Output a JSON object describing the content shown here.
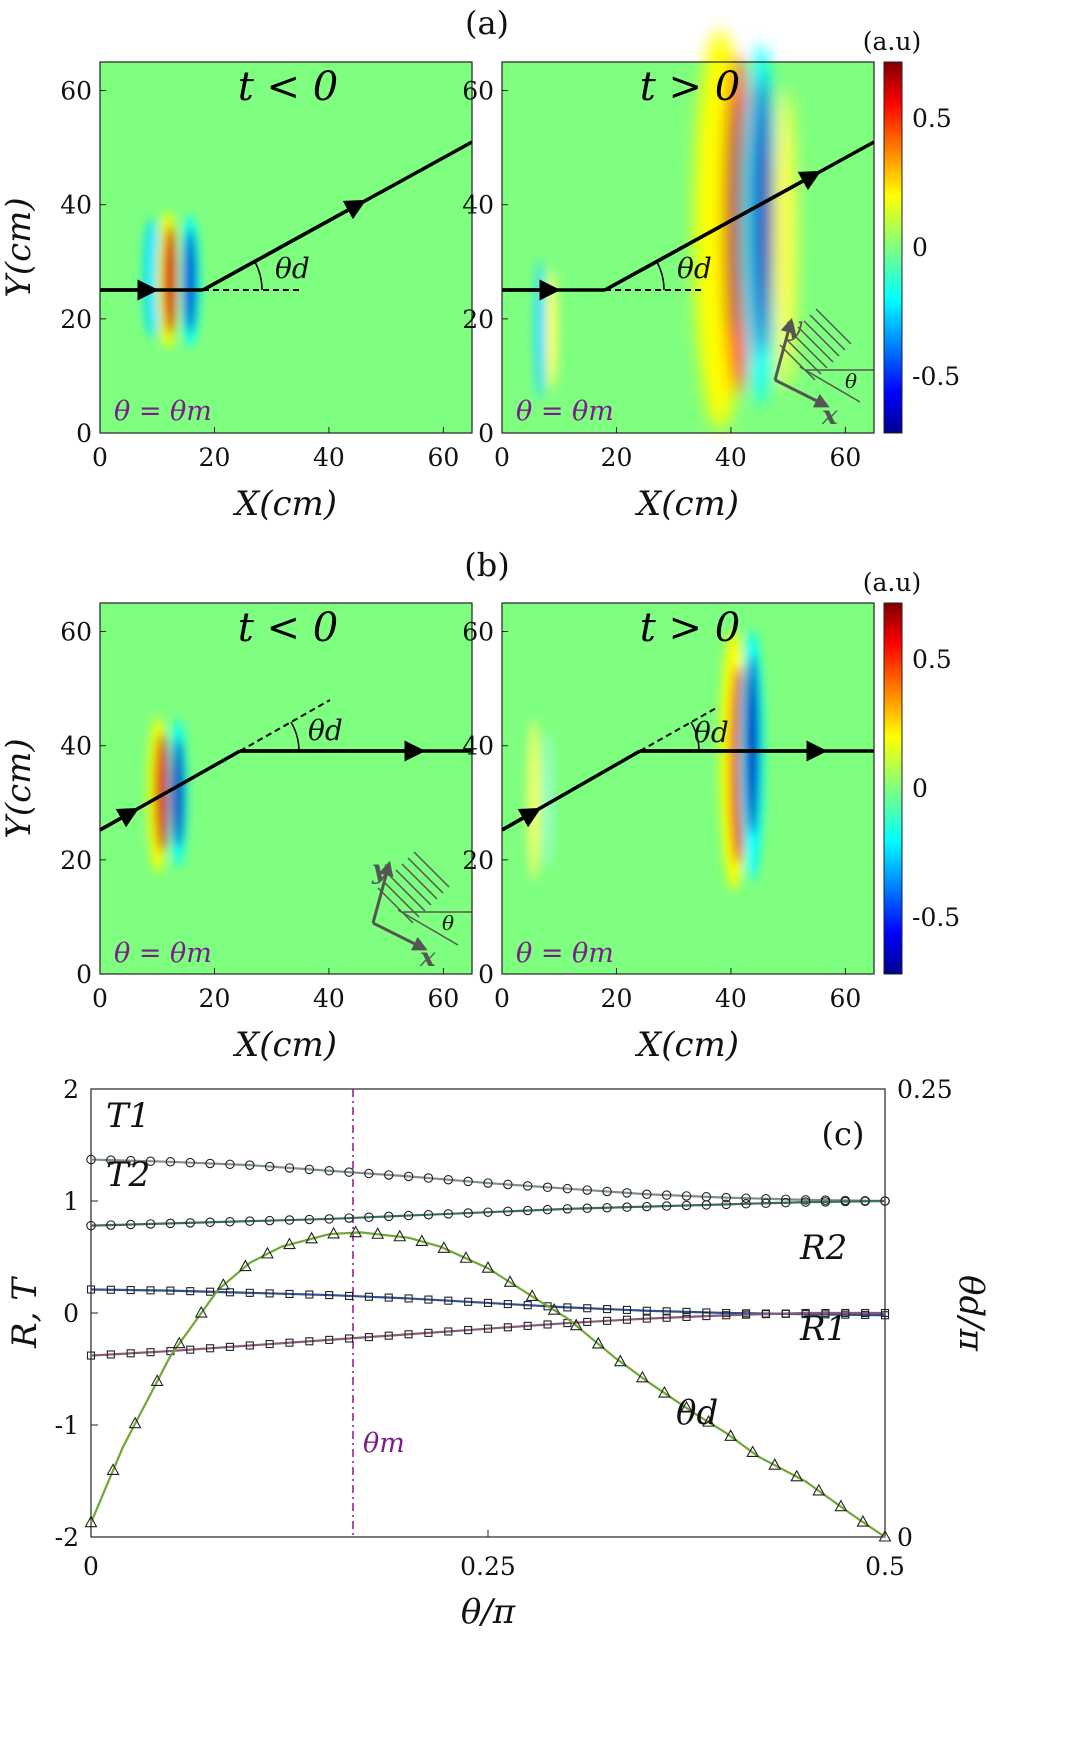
{
  "panels": {
    "a": {
      "label": "(a)",
      "left": {
        "title": "t < 0",
        "annotation": "θ = θm",
        "angle_label": "θd"
      },
      "right": {
        "title": "t > 0",
        "annotation": "θ = θm",
        "angle_label": "θd",
        "inset": {
          "y": "y",
          "x": "x",
          "angle": "θ"
        }
      }
    },
    "b": {
      "label": "(b)",
      "left": {
        "title": "t < 0",
        "annotation": "θ = θm",
        "angle_label": "θd",
        "inset": {
          "y": "y",
          "x": "x",
          "angle": "θ"
        }
      },
      "right": {
        "title": "t > 0",
        "annotation": "θ = θm",
        "angle_label": "θd"
      }
    }
  },
  "field_axes": {
    "xlabel": "X(cm)",
    "ylabel": "Y(cm)",
    "xticks": [
      "0",
      "20",
      "40",
      "60"
    ],
    "yticks": [
      "0",
      "20",
      "40",
      "60"
    ],
    "xlim": [
      0,
      65
    ],
    "ylim": [
      0,
      65
    ]
  },
  "colorbar": {
    "unit": "(a.u)",
    "ticks": [
      "0.5",
      "0",
      "-0.5"
    ],
    "range": [
      -0.7,
      0.7
    ],
    "colormap": "jet"
  },
  "chart_data": {
    "type": "line",
    "panel_label": "(c)",
    "xlabel": "θ/π",
    "ylabel_left": "R, T",
    "ylabel_right": "θd/π",
    "xticks": [
      "0",
      "0.25",
      "0.5"
    ],
    "xlim": [
      0,
      0.5
    ],
    "yticks_left": [
      "-2",
      "-1",
      "0",
      "1",
      "2"
    ],
    "ylim_left": [
      -2,
      2
    ],
    "yticks_right": [
      "0",
      "0.25"
    ],
    "ylim_right": [
      0,
      0.25
    ],
    "vline": {
      "x": 0.165,
      "label": "θm",
      "color": "#9b1f9b"
    },
    "series": [
      {
        "name": "T1",
        "axis": "left",
        "marker": "circle",
        "line_color": "#7f8f8f",
        "x": [
          0,
          0.05,
          0.1,
          0.15,
          0.2,
          0.25,
          0.3,
          0.35,
          0.4,
          0.45,
          0.5
        ],
        "y": [
          1.37,
          1.35,
          1.32,
          1.27,
          1.22,
          1.16,
          1.11,
          1.06,
          1.03,
          1.01,
          1.0
        ]
      },
      {
        "name": "T2",
        "axis": "left",
        "marker": "circle",
        "line_color": "#3a6e5a",
        "x": [
          0,
          0.05,
          0.1,
          0.15,
          0.2,
          0.25,
          0.3,
          0.35,
          0.4,
          0.45,
          0.5
        ],
        "y": [
          0.78,
          0.8,
          0.82,
          0.84,
          0.87,
          0.9,
          0.93,
          0.95,
          0.97,
          0.99,
          1.0
        ]
      },
      {
        "name": "R2",
        "axis": "left",
        "marker": "square",
        "line_color": "#2f4f8f",
        "x": [
          0,
          0.05,
          0.1,
          0.15,
          0.2,
          0.25,
          0.3,
          0.35,
          0.4,
          0.45,
          0.5
        ],
        "y": [
          0.21,
          0.2,
          0.18,
          0.16,
          0.13,
          0.09,
          0.05,
          0.02,
          0.0,
          -0.01,
          -0.02
        ]
      },
      {
        "name": "R1",
        "axis": "left",
        "marker": "square",
        "line_color": "#8a5a7a",
        "x": [
          0,
          0.05,
          0.1,
          0.15,
          0.2,
          0.25,
          0.3,
          0.35,
          0.4,
          0.45,
          0.5
        ],
        "y": [
          -0.38,
          -0.34,
          -0.29,
          -0.24,
          -0.19,
          -0.14,
          -0.09,
          -0.05,
          -0.02,
          0.0,
          0.0
        ]
      },
      {
        "name": "θd",
        "axis": "right",
        "marker": "triangle",
        "line_color": "#6fa832",
        "x": [
          0,
          0.02,
          0.05,
          0.08,
          0.1,
          0.12,
          0.15,
          0.17,
          0.2,
          0.22,
          0.25,
          0.28,
          0.3,
          0.33,
          0.35,
          0.38,
          0.4,
          0.42,
          0.45,
          0.48,
          0.5
        ],
        "y": [
          0.008,
          0.05,
          0.101,
          0.138,
          0.153,
          0.162,
          0.169,
          0.17,
          0.167,
          0.162,
          0.15,
          0.133,
          0.122,
          0.1,
          0.087,
          0.069,
          0.058,
          0.045,
          0.031,
          0.012,
          0.0
        ]
      }
    ]
  }
}
